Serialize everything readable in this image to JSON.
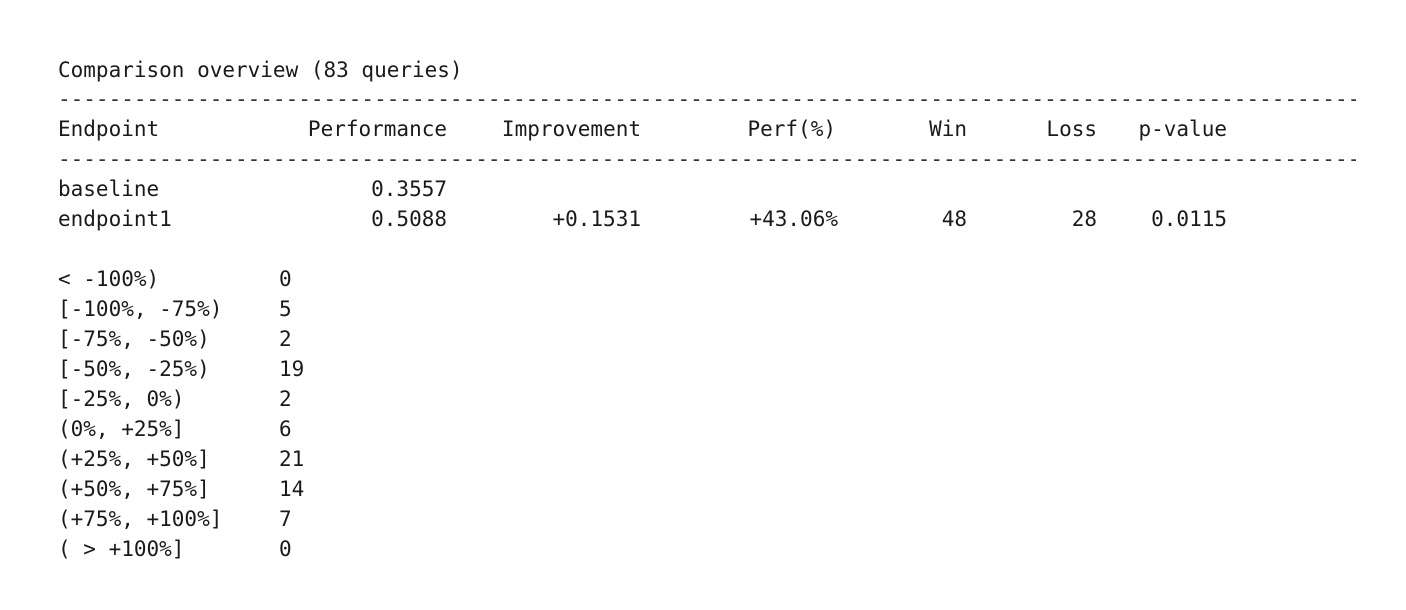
{
  "title": "Comparison overview (83 queries)",
  "separator": "----------------------------------------------------------------------------------------------------------------",
  "headers": {
    "endpoint": "Endpoint",
    "performance": "Performance",
    "improvement": "Improvement",
    "perf_pct": "Perf(%)",
    "win": "Win",
    "loss": "Loss",
    "p_value": "p-value"
  },
  "rows": [
    {
      "endpoint": "baseline",
      "performance": "0.3557",
      "improvement": "",
      "perf_pct": "",
      "win": "",
      "loss": "",
      "p_value": ""
    },
    {
      "endpoint": "endpoint1",
      "performance": "0.5088",
      "improvement": "+0.1531",
      "perf_pct": "+43.06%",
      "win": "48",
      "loss": "28",
      "p_value": "0.0115"
    }
  ],
  "histogram": [
    {
      "range": "< -100%)",
      "count": "0"
    },
    {
      "range": "[-100%, -75%)",
      "count": "5"
    },
    {
      "range": "[-75%, -50%)",
      "count": "2"
    },
    {
      "range": "[-50%, -25%)",
      "count": "19"
    },
    {
      "range": "[-25%, 0%)",
      "count": "2"
    },
    {
      "range": "(0%, +25%]",
      "count": "6"
    },
    {
      "range": "(+25%, +50%]",
      "count": "21"
    },
    {
      "range": "(+50%, +75%]",
      "count": "14"
    },
    {
      "range": "(+75%, +100%]",
      "count": "7"
    },
    {
      "range": "( > +100%]",
      "count": "0"
    }
  ]
}
